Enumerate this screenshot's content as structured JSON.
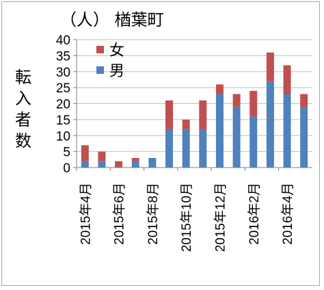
{
  "chart_data": {
    "type": "bar",
    "stacked": true,
    "title": "（人） 楢葉町",
    "ylabel": "転入者数",
    "ylim": [
      0,
      40
    ],
    "yticks": [
      0,
      5,
      10,
      15,
      20,
      25,
      30,
      35,
      40
    ],
    "grid": true,
    "legend": "top-left",
    "categories": [
      "2015年4月",
      "2015年5月",
      "2015年6月",
      "2015年7月",
      "2015年8月",
      "2015年9月",
      "2015年10月",
      "2015年11月",
      "2015年12月",
      "2016年1月",
      "2016年2月",
      "2016年3月",
      "2016年4月",
      "2016年5月"
    ],
    "category_labels": [
      "2015年4月",
      "",
      "2015年6月",
      "",
      "2015年8月",
      "",
      "2015年10月",
      "",
      "2015年12月",
      "",
      "2016年2月",
      "",
      "2016年4月",
      ""
    ],
    "series": [
      {
        "name": "男",
        "color": "#4f81bd",
        "values": [
          2,
          2,
          0,
          2,
          3,
          12,
          12,
          12,
          23,
          19,
          16,
          27,
          23,
          19
        ]
      },
      {
        "name": "女",
        "color": "#c0504d",
        "values": [
          5,
          3,
          2,
          1,
          0,
          9,
          3,
          9,
          3,
          4,
          8,
          9,
          9,
          4
        ]
      }
    ]
  }
}
